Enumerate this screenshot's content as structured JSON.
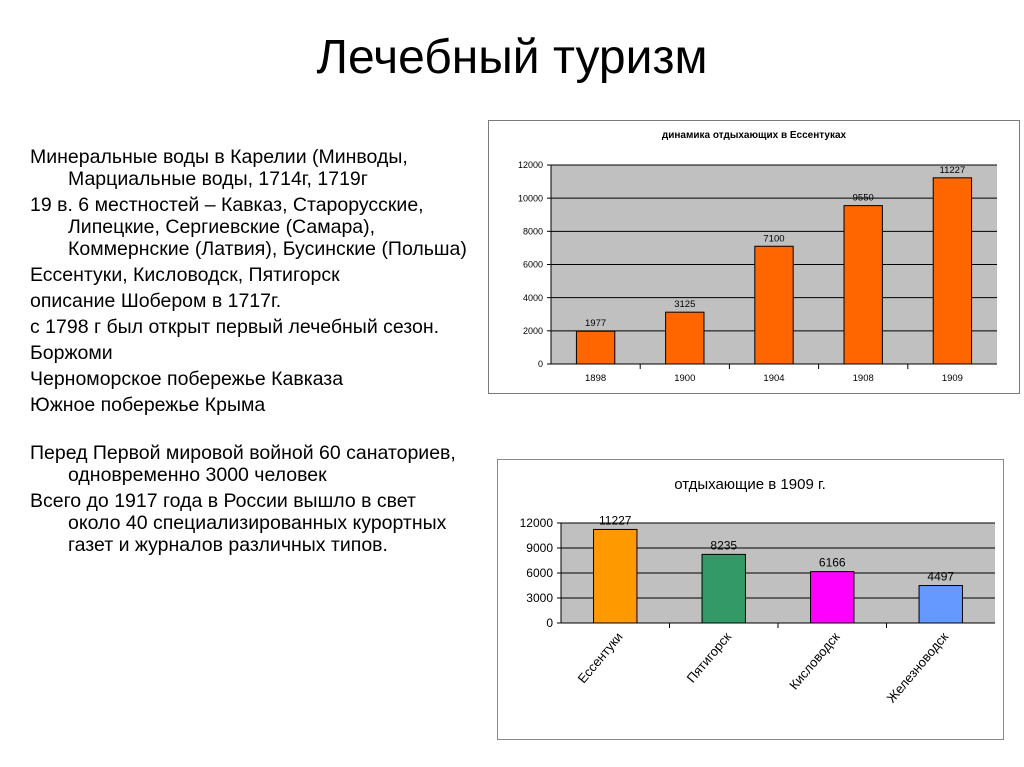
{
  "slide": {
    "title": "Лечебный туризм"
  },
  "bullets": [
    "Минеральные воды в Карелии (Минводы, Марциальные воды, 1714г, 1719г",
    "19 в. 6 местностей – Кавказ, Старорусские, Липецкие, Сергиевские (Самара), Коммернские (Латвия), Бусинские (Польша)",
    "Ессентуки, Кисловодск, Пятигорск",
    "описание Шобером в 1717г.",
    "с 1798 г был открыт первый лечебный сезон.",
    "Боржоми",
    "Черноморское побережье Кавказа",
    "Южное побережье Крыма",
    "",
    "Перед Первой мировой войной 60 санаториев, одновременно 3000 человек",
    "Всего до 1917 года в России вышло в свет около 40 специализированных курортных газет и журналов различных типов."
  ],
  "chart_data": [
    {
      "type": "bar",
      "title": "динамика отдыхающих в Ессентуках",
      "categories": [
        "1898",
        "1900",
        "1904",
        "1908",
        "1909"
      ],
      "values": [
        1977,
        3125,
        7100,
        9550,
        11227
      ],
      "ylim": [
        0,
        12000
      ],
      "yticks": [
        0,
        2000,
        4000,
        6000,
        8000,
        10000,
        12000
      ],
      "bar_color": "#ff6600",
      "plot_bg": "#c0c0c0",
      "grid": true,
      "xlabel": "",
      "ylabel": ""
    },
    {
      "type": "bar",
      "title": "отдыхающие в 1909 г.",
      "categories": [
        "Ессентуки",
        "Пятигорск",
        "Кисловодск",
        "Железноводск"
      ],
      "values": [
        11227,
        8235,
        6166,
        4497
      ],
      "colors": [
        "#ff9900",
        "#339966",
        "#ff00ff",
        "#6699ff"
      ],
      "ylim": [
        0,
        12000
      ],
      "yticks": [
        0,
        3000,
        6000,
        9000,
        12000
      ],
      "plot_bg": "#c0c0c0",
      "grid": true,
      "xlabel": "",
      "ylabel": ""
    }
  ]
}
